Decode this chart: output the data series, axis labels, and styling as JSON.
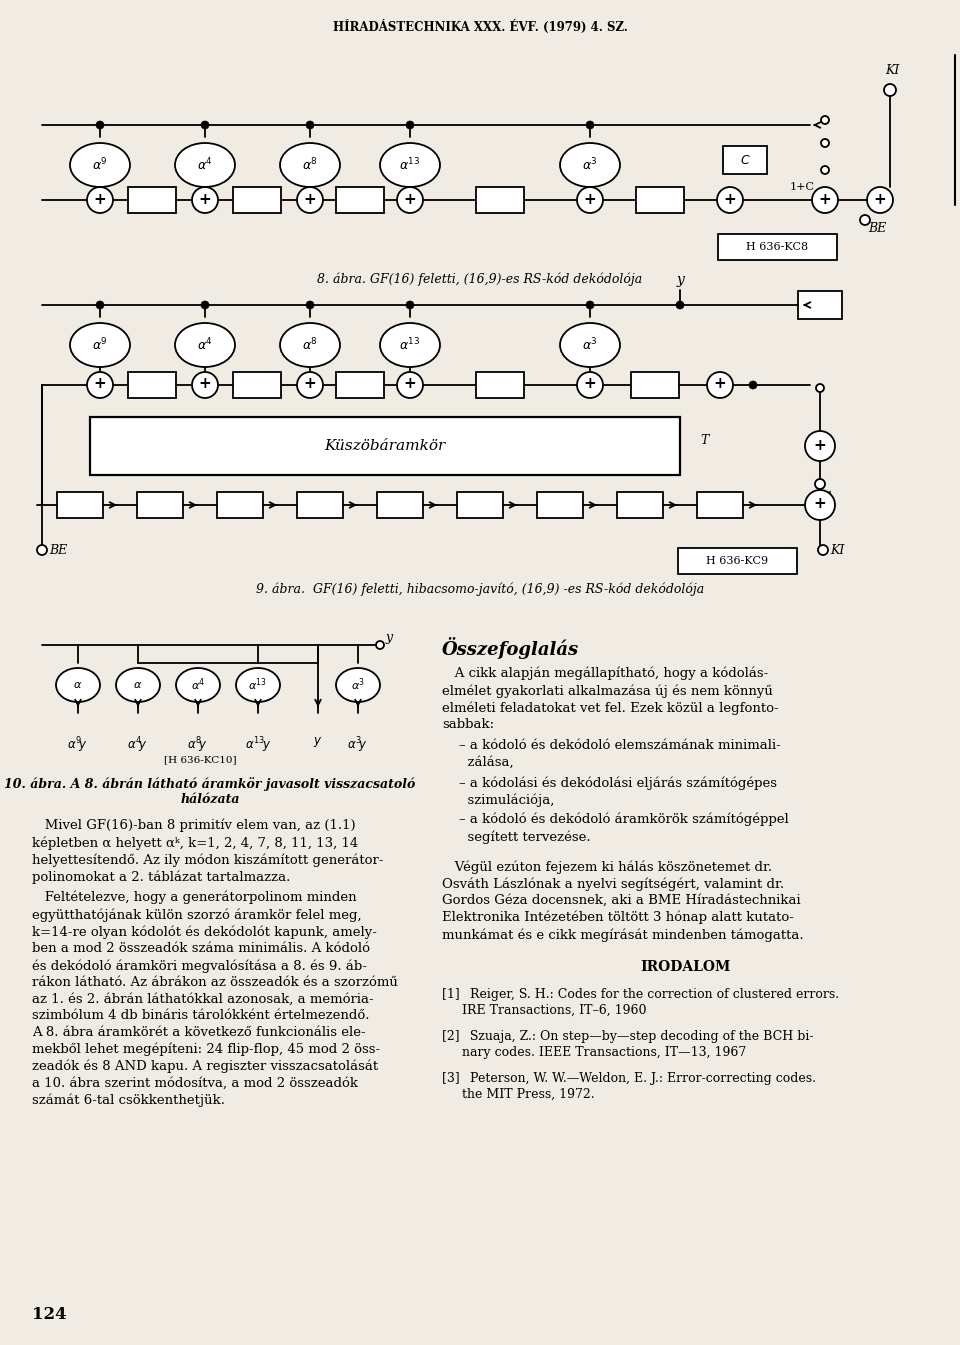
{
  "header": "HÍRADÁSTECHNIKA XXX. ÉVF. (1979) 4. SZ.",
  "fig8_caption": "8. ábra. GF(16) feletti, (16,9)-es RS-kód dekódolója",
  "fig9_caption": "9. ábra.  GF(16) feletti, hibacsomo-javító, (16,9) -es RS-kód dekódolója",
  "fig10_caption_line1": "10. ábra. A 8. ábrán látható áramkör javasolt visszacsatoló",
  "fig10_caption_line2": "hálózata",
  "box_label8": "H 636-KC8",
  "box_label9": "H 636-KC9",
  "box_label10": "H 636-KC10",
  "summary_title": "Összefoglalás",
  "irodalom_title": "IRODALOM",
  "page_num": "124",
  "bg_color": "#f0ece4",
  "lw": 1.3
}
